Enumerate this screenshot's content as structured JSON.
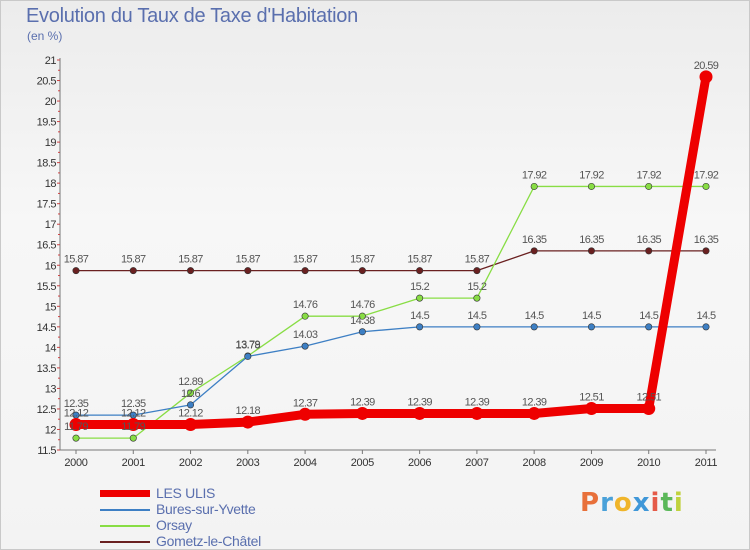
{
  "title": "Evolution du Taux de Taxe d'Habitation",
  "unit": "(en %)",
  "brand": {
    "letters": [
      "P",
      "r",
      "o",
      "x",
      "i",
      "t",
      "i"
    ],
    "colors": [
      "#e8703a",
      "#4aa1d9",
      "#f0b52a",
      "#3f97d8",
      "#e55a48",
      "#5bb85a",
      "#c0d23d"
    ]
  },
  "chart_data": {
    "type": "line",
    "title": "Evolution du Taux de Taxe d'Habitation",
    "ylabel": "(en %)",
    "xlabel": "",
    "x": [
      "2000",
      "2001",
      "2002",
      "2003",
      "2004",
      "2005",
      "2006",
      "2007",
      "2008",
      "2009",
      "2010",
      "2011"
    ],
    "ylim": [
      11.5,
      21
    ],
    "yticks": [
      "11.5",
      "12",
      "12.5",
      "13",
      "13.5",
      "14",
      "14.5",
      "15",
      "15.5",
      "16",
      "16.5",
      "17",
      "17.5",
      "18",
      "18.5",
      "19",
      "19.5",
      "20",
      "20.5",
      "21"
    ],
    "grid": false,
    "legend_position": "bottom-left",
    "series": [
      {
        "name": "LES ULIS",
        "color": "#ee0000",
        "values": [
          12.12,
          12.12,
          12.12,
          12.18,
          12.37,
          12.39,
          12.39,
          12.39,
          12.39,
          12.51,
          12.51,
          20.59
        ],
        "labels": [
          "12.12",
          "12.12",
          "12.12",
          "12.18",
          "12.37",
          "12.39",
          "12.39",
          "12.39",
          "12.39",
          "12.51",
          "12.51",
          "20.59"
        ]
      },
      {
        "name": "Bures-sur-Yvette",
        "color": "#3d7fc4",
        "values": [
          12.35,
          12.35,
          12.6,
          13.78,
          14.03,
          14.38,
          14.5,
          14.5,
          14.5,
          14.5,
          14.5,
          14.5
        ],
        "labels": [
          "12.35",
          "12.35",
          "12.6",
          "13.78",
          "14.03",
          "14.38",
          "14.5",
          "14.5",
          "14.5",
          "14.5",
          "14.5",
          "14.5"
        ]
      },
      {
        "name": "Orsay",
        "color": "#88dd44",
        "values": [
          11.79,
          11.79,
          12.89,
          13.79,
          14.76,
          14.76,
          15.2,
          15.2,
          17.92,
          17.92,
          17.92,
          17.92
        ],
        "labels": [
          "11.79",
          "11.79",
          "12.89",
          "13.79",
          "14.76",
          "14.76",
          "15.2",
          "15.2",
          "17.92",
          "17.92",
          "17.92",
          "17.92"
        ]
      },
      {
        "name": "Gometz-le-Châtel",
        "color": "#6a2020",
        "values": [
          15.87,
          15.87,
          15.87,
          15.87,
          15.87,
          15.87,
          15.87,
          15.87,
          16.35,
          16.35,
          16.35,
          16.35
        ],
        "labels": [
          "15.87",
          "15.87",
          "15.87",
          "15.87",
          "15.87",
          "15.87",
          "15.87",
          "15.87",
          "16.35",
          "16.35",
          "16.35",
          "16.35"
        ]
      }
    ]
  }
}
